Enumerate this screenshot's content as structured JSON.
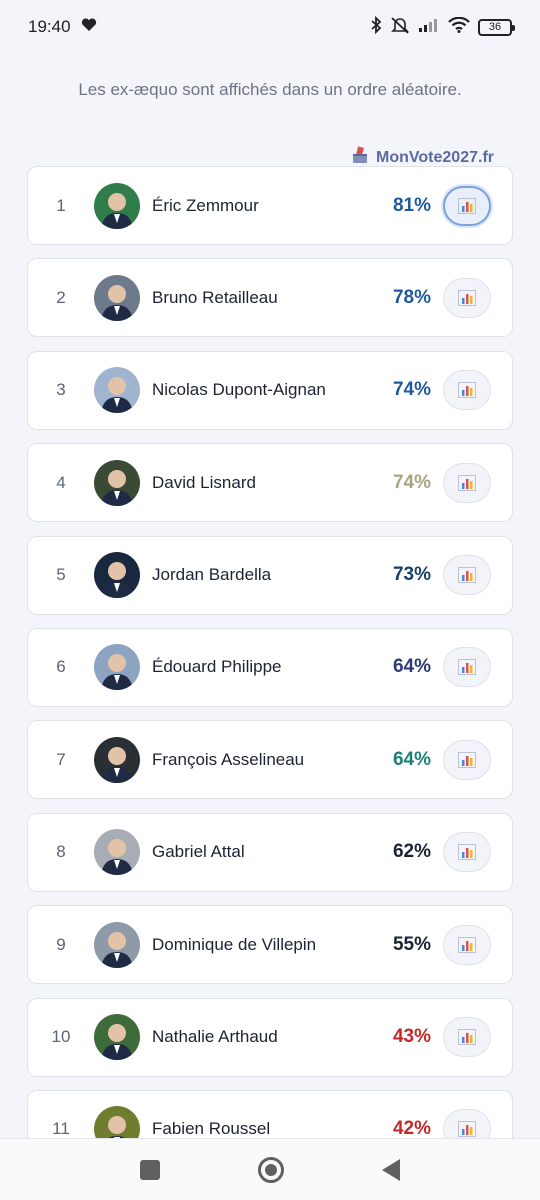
{
  "status_bar": {
    "time": "19:40",
    "battery": "36"
  },
  "notice": "Les ex-æquo sont affichés dans un ordre aléatoire.",
  "brand": "MonVote2027.fr",
  "rankings": [
    {
      "rank": "1",
      "name": "Éric Zemmour",
      "score": "81%",
      "color": "#1f5a9e",
      "avatar_bg": "#2e7d4a"
    },
    {
      "rank": "2",
      "name": "Bruno Retailleau",
      "score": "78%",
      "color": "#1f5a9e",
      "avatar_bg": "#6d7a8c"
    },
    {
      "rank": "3",
      "name": "Nicolas Dupont-Aignan",
      "score": "74%",
      "color": "#1f5a9e",
      "avatar_bg": "#9fb4cf"
    },
    {
      "rank": "4",
      "name": "David Lisnard",
      "score": "74%",
      "color": "#a8a47e",
      "avatar_bg": "#3b4a35"
    },
    {
      "rank": "5",
      "name": "Jordan Bardella",
      "score": "73%",
      "color": "#173d68",
      "avatar_bg": "#18283f"
    },
    {
      "rank": "6",
      "name": "Édouard Philippe",
      "score": "64%",
      "color": "#2a3a7a",
      "avatar_bg": "#8da3c2"
    },
    {
      "rank": "7",
      "name": "François Asselineau",
      "score": "64%",
      "color": "#1d7f7a",
      "avatar_bg": "#2a2e35"
    },
    {
      "rank": "8",
      "name": "Gabriel Attal",
      "score": "62%",
      "color": "#1d2333",
      "avatar_bg": "#a7acb5"
    },
    {
      "rank": "9",
      "name": "Dominique de Villepin",
      "score": "55%",
      "color": "#1d2333",
      "avatar_bg": "#8e9aa8"
    },
    {
      "rank": "10",
      "name": "Nathalie Arthaud",
      "score": "43%",
      "color": "#c62828",
      "avatar_bg": "#3e6b3a"
    },
    {
      "rank": "11",
      "name": "Fabien Roussel",
      "score": "42%",
      "color": "#c62828",
      "avatar_bg": "#6f7e2e"
    }
  ]
}
